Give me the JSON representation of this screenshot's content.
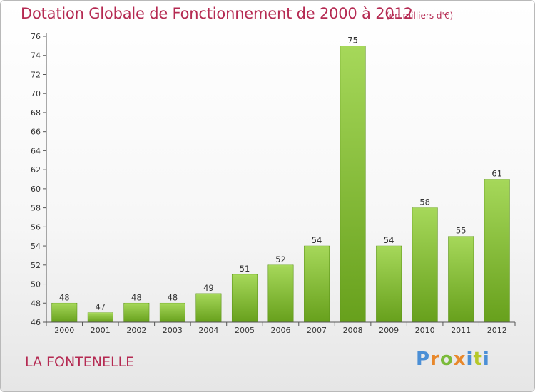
{
  "header": {
    "title": "Dotation Globale de Fonctionnement de 2000 à 2012",
    "subtitle": "(en milliers d'€)"
  },
  "footer": {
    "commune": "LA FONTENELLE",
    "logo_letters": [
      "P",
      "r",
      "o",
      "x",
      "i",
      "t",
      "i"
    ],
    "logo_colors": [
      "#4b8fd6",
      "#e8882b",
      "#7bbb3a",
      "#e8882b",
      "#4b8fd6",
      "#b6c829",
      "#4b8fd6"
    ]
  },
  "chart_data": {
    "type": "bar",
    "categories": [
      "2000",
      "2001",
      "2002",
      "2003",
      "2004",
      "2005",
      "2006",
      "2007",
      "2008",
      "2009",
      "2010",
      "2011",
      "2012"
    ],
    "values": [
      48,
      47,
      48,
      48,
      49,
      51,
      52,
      54,
      75,
      54,
      58,
      55,
      61
    ],
    "title": "Dotation Globale de Fonctionnement de 2000 à 2012",
    "subtitle": "(en milliers d'€)",
    "xlabel": "",
    "ylabel": "",
    "ylim": [
      46,
      76
    ],
    "yticks": [
      46,
      48,
      50,
      52,
      54,
      56,
      58,
      60,
      62,
      64,
      66,
      68,
      70,
      72,
      74,
      76
    ],
    "grid": false,
    "legend": "none",
    "bar_color": "#7cb82e",
    "bar_color_light": "#a6d85a"
  }
}
